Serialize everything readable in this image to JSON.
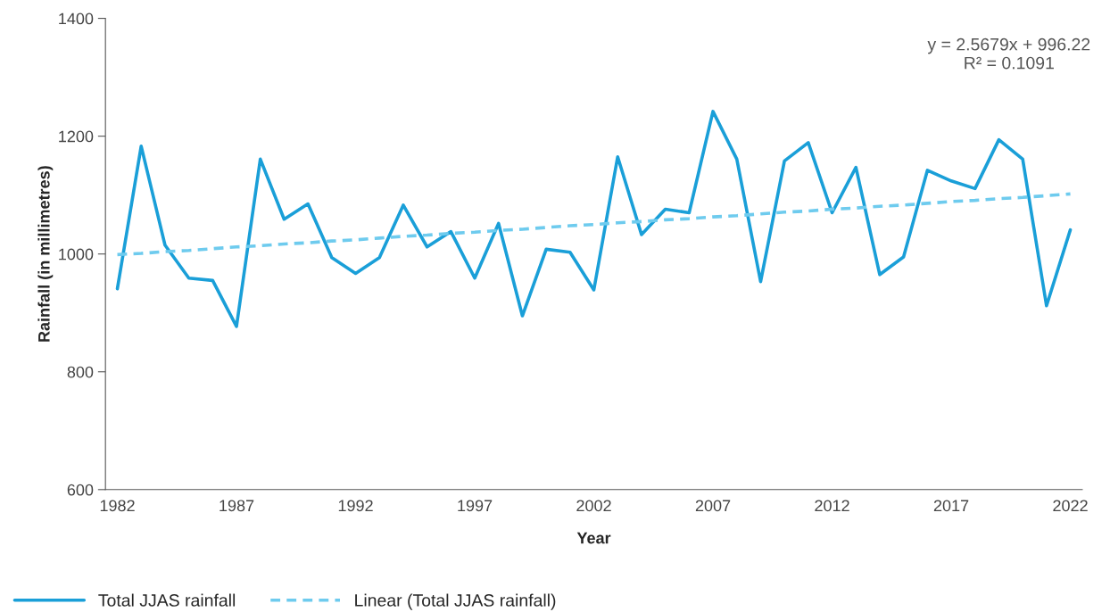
{
  "chart_data": {
    "type": "line",
    "xlabel": "Year",
    "ylabel": "Rainfall (in millimetres)",
    "categories": [
      "1982",
      null,
      null,
      null,
      null,
      "1987",
      null,
      null,
      null,
      null,
      "1992",
      null,
      null,
      null,
      null,
      "1997",
      null,
      null,
      null,
      null,
      "2002",
      null,
      null,
      null,
      null,
      "2007",
      null,
      null,
      null,
      null,
      "2012",
      null,
      null,
      null,
      null,
      "2017",
      null,
      null,
      null,
      null,
      "2022"
    ],
    "series": [
      {
        "name": "Total JJAS rainfall",
        "color": "#1a9fd8",
        "line_style": "solid",
        "values": [
          941,
          1183,
          1015,
          959,
          955,
          877,
          1161,
          1059,
          1085,
          994,
          967,
          994,
          1083,
          1012,
          1038,
          959,
          1052,
          895,
          1008,
          1003,
          939,
          1165,
          1033,
          1076,
          1070,
          1242,
          1161,
          953,
          1158,
          1189,
          1070,
          1147,
          965,
          995,
          1142,
          1124,
          1111,
          1194,
          1161,
          912,
          1041
        ]
      },
      {
        "name": "Linear (Total JJAS rainfall)",
        "type": "line",
        "color": "#6ecbee",
        "line_style": "dashed",
        "values": [
          999,
          1001,
          1004,
          1006,
          1009,
          1012,
          1014,
          1017,
          1019,
          1022,
          1024,
          1027,
          1030,
          1032,
          1035,
          1037,
          1040,
          1042,
          1045,
          1048,
          1050,
          1053,
          1055,
          1058,
          1060,
          1063,
          1065,
          1068,
          1071,
          1073,
          1076,
          1078,
          1081,
          1083,
          1086,
          1089,
          1091,
          1094,
          1096,
          1099,
          1102
        ]
      }
    ],
    "ylim": [
      600,
      1400
    ],
    "yticks": [
      600,
      800,
      1000,
      1200,
      1400
    ],
    "annotations": [
      "y = 2.5679x + 996.22\nR² = 0.1091"
    ],
    "grid": false,
    "legend": "bottom left",
    "marker": "none"
  }
}
